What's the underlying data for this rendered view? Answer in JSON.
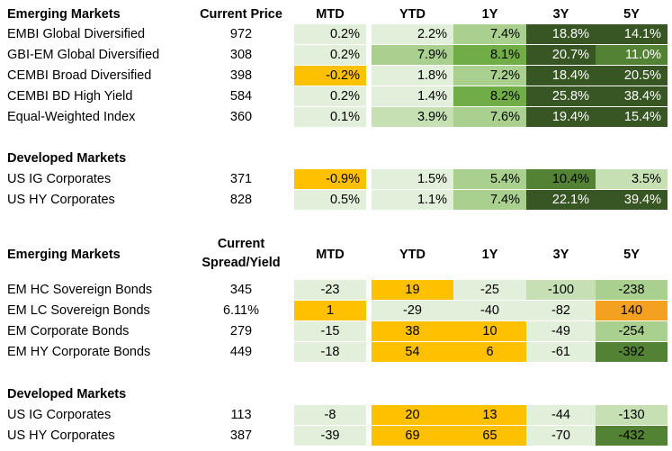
{
  "colors": {
    "pale_green": "#e2efda",
    "light_green": "#c6e0b4",
    "mid_green": "#a9d08e",
    "green": "#70ad47",
    "dark_green": "#548235",
    "darkest_green": "#375623",
    "amber": "#ffc000",
    "orange": "#f4a020"
  },
  "section1": {
    "header": {
      "label": "Emerging Markets",
      "price": "Current Price",
      "mtd": "MTD",
      "ytd": "YTD",
      "y1": "1Y",
      "y3": "3Y",
      "y5": "5Y"
    },
    "rows": [
      {
        "label": "EMBI Global Diversified",
        "price": "972",
        "mtd": "0.2%",
        "ytd": "2.2%",
        "y1": "7.4%",
        "y3": "18.8%",
        "y5": "14.1%"
      },
      {
        "label": "GBI-EM Global Diversified",
        "price": "308",
        "mtd": "0.2%",
        "ytd": "7.9%",
        "y1": "8.1%",
        "y3": "20.7%",
        "y5": "11.0%"
      },
      {
        "label": "CEMBI Broad Diversified",
        "price": "398",
        "mtd": "-0.2%",
        "ytd": "1.8%",
        "y1": "7.2%",
        "y3": "18.4%",
        "y5": "20.5%"
      },
      {
        "label": "CEMBI BD High Yield",
        "price": "584",
        "mtd": "0.2%",
        "ytd": "1.4%",
        "y1": "8.2%",
        "y3": "25.8%",
        "y5": "38.4%"
      },
      {
        "label": "Equal-Weighted Index",
        "price": "360",
        "mtd": "0.1%",
        "ytd": "3.9%",
        "y1": "7.6%",
        "y3": "19.4%",
        "y5": "15.4%"
      }
    ]
  },
  "section2": {
    "header": {
      "label": "Developed Markets"
    },
    "rows": [
      {
        "label": "US IG Corporates",
        "price": "371",
        "mtd": "-0.9%",
        "ytd": "1.5%",
        "y1": "5.4%",
        "y3": "10.4%",
        "y5": "3.5%"
      },
      {
        "label": "US HY Corporates",
        "price": "828",
        "mtd": "0.5%",
        "ytd": "1.1%",
        "y1": "7.4%",
        "y3": "22.1%",
        "y5": "39.4%"
      }
    ]
  },
  "section3": {
    "header": {
      "label": "Emerging Markets",
      "price_line1": "Current",
      "price_line2": "Spread/Yield",
      "mtd": "MTD",
      "ytd": "YTD",
      "y1": "1Y",
      "y3": "3Y",
      "y5": "5Y"
    },
    "rows": [
      {
        "label": "EM HC Sovereign Bonds",
        "price": "345",
        "mtd": "-23",
        "ytd": "19",
        "y1": "-25",
        "y3": "-100",
        "y5": "-238"
      },
      {
        "label": "EM LC Sovereign Bonds",
        "price": "6.11%",
        "mtd": "1",
        "ytd": "-29",
        "y1": "-40",
        "y3": "-82",
        "y5": "140"
      },
      {
        "label": "EM Corporate Bonds",
        "price": "279",
        "mtd": "-15",
        "ytd": "38",
        "y1": "10",
        "y3": "-49",
        "y5": "-254"
      },
      {
        "label": "EM HY Corporate Bonds",
        "price": "449",
        "mtd": "-18",
        "ytd": "54",
        "y1": "6",
        "y3": "-61",
        "y5": "-392"
      }
    ]
  },
  "section4": {
    "header": {
      "label": "Developed Markets"
    },
    "rows": [
      {
        "label": "US IG Corporates",
        "price": "113",
        "mtd": "-8",
        "ytd": "20",
        "y1": "13",
        "y3": "-44",
        "y5": "-130"
      },
      {
        "label": "US HY Corporates",
        "price": "387",
        "mtd": "-39",
        "ytd": "69",
        "y1": "65",
        "y3": "-70",
        "y5": "-432"
      }
    ]
  }
}
